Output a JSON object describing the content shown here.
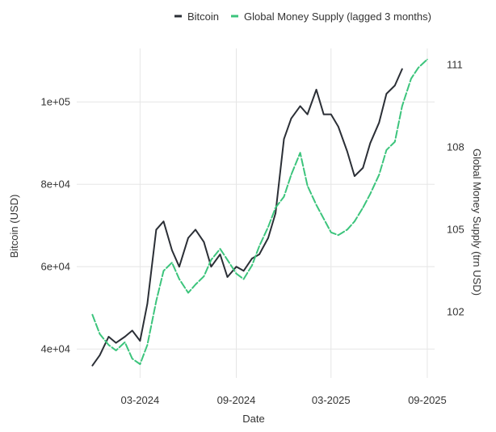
{
  "chart_data": {
    "type": "line",
    "xlabel": "Date",
    "x_ticks": [
      "03-2024",
      "09-2024",
      "03-2025",
      "09-2025"
    ],
    "x_tick_dates": [
      "2024-03-01",
      "2024-09-01",
      "2025-03-01",
      "2025-09-01"
    ],
    "x_range": [
      "2023-11-01",
      "2025-09-15"
    ],
    "grid": true,
    "legend_position": "top",
    "series": [
      {
        "name": "Bitcoin",
        "axis": "left",
        "color": "#2b2f36",
        "dates": [
          "2023-12-01",
          "2023-12-15",
          "2024-01-01",
          "2024-01-15",
          "2024-02-01",
          "2024-02-15",
          "2024-03-01",
          "2024-03-15",
          "2024-04-01",
          "2024-04-15",
          "2024-05-01",
          "2024-05-15",
          "2024-06-01",
          "2024-06-15",
          "2024-07-01",
          "2024-07-15",
          "2024-08-01",
          "2024-08-15",
          "2024-09-01",
          "2024-09-15",
          "2024-10-01",
          "2024-10-15",
          "2024-11-01",
          "2024-11-15",
          "2024-12-01",
          "2024-12-15",
          "2025-01-01",
          "2025-01-15",
          "2025-02-01",
          "2025-02-15",
          "2025-03-01",
          "2025-03-15",
          "2025-04-01",
          "2025-04-15",
          "2025-05-01",
          "2025-05-15",
          "2025-06-01",
          "2025-06-15",
          "2025-07-01",
          "2025-07-15"
        ],
        "values": [
          36000,
          38500,
          43000,
          41500,
          43000,
          44500,
          42000,
          51000,
          69000,
          71000,
          64000,
          60000,
          67000,
          69000,
          66000,
          60000,
          63000,
          57500,
          60000,
          59000,
          62000,
          63000,
          67000,
          73000,
          91000,
          96000,
          99000,
          97000,
          103000,
          97000,
          97000,
          94000,
          88000,
          82000,
          84000,
          90000,
          95000,
          102000,
          104000,
          108000
        ]
      },
      {
        "name": "Global Money Supply (lagged 3 months)",
        "axis": "right",
        "color": "#3cc47c",
        "dates": [
          "2023-12-01",
          "2023-12-15",
          "2024-01-01",
          "2024-01-15",
          "2024-02-01",
          "2024-02-15",
          "2024-03-01",
          "2024-03-15",
          "2024-04-01",
          "2024-04-15",
          "2024-05-01",
          "2024-05-15",
          "2024-06-01",
          "2024-06-15",
          "2024-07-01",
          "2024-07-15",
          "2024-08-01",
          "2024-08-15",
          "2024-09-01",
          "2024-09-15",
          "2024-10-01",
          "2024-10-15",
          "2024-11-01",
          "2024-11-15",
          "2024-12-01",
          "2024-12-15",
          "2025-01-01",
          "2025-01-15",
          "2025-02-01",
          "2025-02-15",
          "2025-03-01",
          "2025-03-15",
          "2025-04-01",
          "2025-04-15",
          "2025-05-01",
          "2025-05-15",
          "2025-06-01",
          "2025-06-15",
          "2025-07-01",
          "2025-07-15",
          "2025-08-01",
          "2025-08-15",
          "2025-09-01"
        ],
        "values": [
          101.9,
          101.2,
          100.8,
          100.6,
          100.9,
          100.3,
          100.1,
          100.8,
          102.4,
          103.5,
          103.8,
          103.2,
          102.7,
          103.0,
          103.3,
          103.9,
          104.3,
          103.9,
          103.4,
          103.2,
          103.7,
          104.4,
          105.1,
          105.8,
          106.2,
          107.0,
          107.8,
          106.6,
          105.9,
          105.4,
          104.9,
          104.8,
          105.0,
          105.3,
          105.8,
          106.3,
          107.0,
          107.9,
          108.2,
          109.5,
          110.5,
          110.9,
          111.2
        ]
      }
    ],
    "left_axis": {
      "label": "Bitcoin (USD)",
      "ticks": [
        "4e+04",
        "6e+04",
        "8e+04",
        "1e+05"
      ],
      "tick_values": [
        40000,
        60000,
        80000,
        100000
      ],
      "range": [
        33000,
        113000
      ]
    },
    "right_axis": {
      "label": "Global Money Supply (trn USD)",
      "ticks": [
        "102",
        "105",
        "108",
        "111"
      ],
      "tick_values": [
        102,
        105,
        108,
        111
      ],
      "range": [
        99.6,
        111.6
      ]
    }
  }
}
